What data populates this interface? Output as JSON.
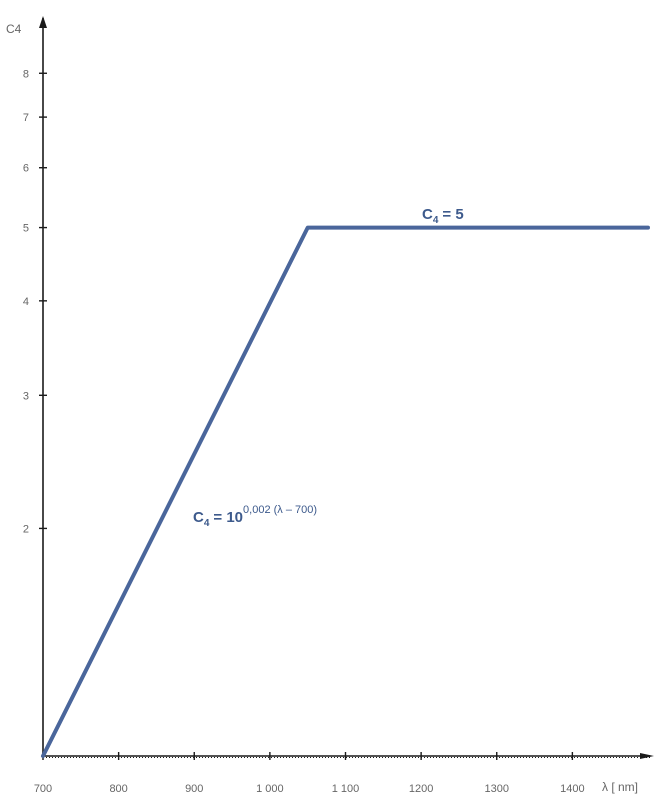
{
  "chart_data": {
    "type": "line",
    "xlabel": "λ [ nm]",
    "ylabel": "C4",
    "x_scale": "linear",
    "y_scale": "log",
    "xlim": [
      700,
      1500
    ],
    "ylim": [
      1,
      10
    ],
    "x_ticks": [
      "700",
      "800",
      "900",
      "1 000",
      "1 100",
      "1200",
      "1300",
      "1400"
    ],
    "y_ticks": [
      "2",
      "3",
      "4",
      "5",
      "6",
      "7",
      "8"
    ],
    "series": [
      {
        "x": [
          700,
          1050,
          1075,
          1500
        ],
        "y": [
          1,
          5,
          5,
          5
        ],
        "color": "#4a669b"
      }
    ],
    "annotations": {
      "rising": {
        "base": "C",
        "sub": "4",
        "eq": "= 10",
        "sup": "0,002 (λ – 700)"
      },
      "plateau": {
        "base": "C",
        "sub": "4",
        "eq": "= 5"
      }
    },
    "grid": false
  }
}
